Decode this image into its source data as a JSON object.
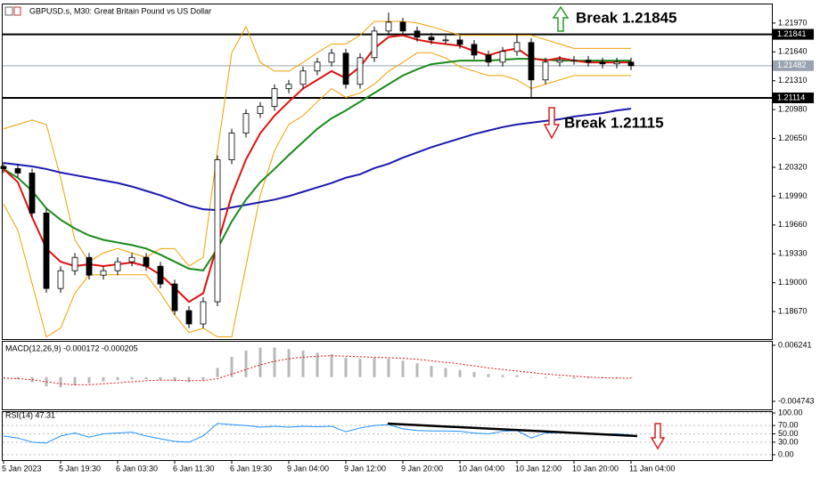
{
  "chart_data": [
    {
      "type": "candlestick",
      "title": "GBPUSD.s, M30:  Great Britain Pound vs US Dollar",
      "categories": [
        "5 Jan 2023",
        null,
        null,
        null,
        "5 Jan 19:30",
        null,
        null,
        null,
        "6 Jan 03:30",
        null,
        null,
        null,
        "6 Jan 11:30",
        null,
        null,
        null,
        "6 Jan 19:30",
        null,
        null,
        null,
        "9 Jan 04:00",
        null,
        null,
        null,
        "9 Jan 12:00",
        null,
        null,
        null,
        "9 Jan 20:00",
        null,
        null,
        null,
        "10 Jan 04:00",
        null,
        null,
        null,
        "10 Jan 12:00",
        null,
        null,
        null,
        "10 Jan 20:00",
        null,
        null,
        null,
        "11 Jan 04:00"
      ],
      "open": [
        1.2033,
        1.20305,
        1.20254,
        1.19797,
        1.18934,
        1.19137,
        1.19289,
        1.19086,
        1.19137,
        1.19239,
        1.19289,
        1.19188,
        1.18985,
        1.1868,
        1.18528,
        1.18782,
        1.20406,
        1.20711,
        1.20934,
        1.21016,
        1.21219,
        1.21269,
        1.21422,
        1.21523,
        1.21625,
        1.21269,
        1.21574,
        1.21879,
        1.2198,
        1.21879,
        1.21808,
        1.21777,
        1.21777,
        1.21726,
        1.21604,
        1.21523,
        1.21645,
        1.21747,
        1.2132,
        1.21523,
        1.21544,
        1.21544,
        1.21523,
        1.21503,
        1.21523
      ],
      "high": [
        1.2038,
        1.20355,
        1.20304,
        1.19847,
        1.19187,
        1.19339,
        1.19339,
        1.19187,
        1.19289,
        1.19339,
        1.19339,
        1.19238,
        1.19035,
        1.1873,
        1.18832,
        1.20456,
        1.20761,
        1.20984,
        1.21066,
        1.21269,
        1.21319,
        1.21472,
        1.21573,
        1.21675,
        1.21675,
        1.21624,
        1.21929,
        1.2209,
        1.2203,
        1.21929,
        1.21858,
        1.21827,
        1.21827,
        1.21776,
        1.21654,
        1.21695,
        1.2185,
        1.21797,
        1.21573,
        1.21594,
        1.21594,
        1.21594,
        1.21573,
        1.21573,
        1.21573
      ],
      "low": [
        1.20255,
        1.20204,
        1.19747,
        1.18884,
        1.18884,
        1.19087,
        1.19036,
        1.19036,
        1.19087,
        1.19189,
        1.19138,
        1.18935,
        1.1863,
        1.18478,
        1.18478,
        1.18732,
        1.20356,
        1.20661,
        1.20884,
        1.20966,
        1.21169,
        1.21219,
        1.21372,
        1.21473,
        1.21219,
        1.21219,
        1.21524,
        1.21829,
        1.21829,
        1.21758,
        1.21727,
        1.21727,
        1.21676,
        1.21554,
        1.21473,
        1.21473,
        1.21595,
        1.21114,
        1.2127,
        1.21473,
        1.21494,
        1.21473,
        1.21453,
        1.21453,
        1.21432
      ],
      "close": [
        1.20305,
        1.20254,
        1.19797,
        1.18934,
        1.19137,
        1.19289,
        1.19086,
        1.19137,
        1.19239,
        1.19289,
        1.19188,
        1.18985,
        1.1868,
        1.18528,
        1.18782,
        1.20406,
        1.20711,
        1.20934,
        1.21016,
        1.21219,
        1.21269,
        1.21422,
        1.21523,
        1.21625,
        1.21269,
        1.21574,
        1.21879,
        1.2198,
        1.21879,
        1.21808,
        1.21777,
        1.21777,
        1.21726,
        1.21604,
        1.21523,
        1.21645,
        1.21747,
        1.2132,
        1.21523,
        1.21544,
        1.21544,
        1.21523,
        1.21503,
        1.21523,
        1.21482
      ],
      "lines": [
        {
          "color": "#f0a000",
          "values": [
            1.2076,
            1.2081,
            1.2086,
            1.2081,
            1.202,
            1.1949,
            1.1924,
            1.1934,
            1.1939,
            1.1934,
            1.1929,
            1.1939,
            1.1939,
            1.1919,
            1.1929,
            1.2051,
            1.2163,
            1.2193,
            1.2152,
            1.2142,
            1.2142,
            1.2152,
            1.2163,
            1.2173,
            1.2173,
            1.2183,
            1.2199,
            1.2199,
            1.2199,
            1.2197,
            1.2193,
            1.2188,
            1.2183,
            1.2183,
            1.2183,
            1.2183,
            1.2183,
            1.2183,
            1.2178,
            1.2173,
            1.2168,
            1.2168,
            1.2168,
            1.2168,
            1.2168
          ]
        },
        {
          "color": "#f0a000",
          "values": [
            1.199,
            1.196,
            1.1899,
            1.1838,
            1.1848,
            1.1888,
            1.1909,
            1.1909,
            1.1909,
            1.1909,
            1.1909,
            1.1888,
            1.1863,
            1.1843,
            1.1848,
            1.1838,
            1.1838,
            1.1919,
            1.2,
            1.2051,
            1.2081,
            1.2091,
            1.2107,
            1.2122,
            1.2112,
            1.2117,
            1.2127,
            1.2142,
            1.2152,
            1.2163,
            1.2163,
            1.2157,
            1.2147,
            1.2142,
            1.2137,
            1.2137,
            1.2132,
            1.2122,
            1.2127,
            1.2132,
            1.2137,
            1.2137,
            1.2137,
            1.2137,
            1.2137
          ]
        },
        {
          "color": "#1a1ab0",
          "values": [
            1.2037,
            1.2035,
            1.2033,
            1.203,
            1.2026,
            1.2023,
            1.202,
            1.2017,
            1.2014,
            1.201,
            1.2005,
            1.2,
            1.1994,
            1.1988,
            1.1984,
            1.1983,
            1.1986,
            1.1989,
            1.1992,
            1.1995,
            1.1999,
            1.2004,
            1.2009,
            1.2014,
            1.202,
            1.2024,
            1.2031,
            1.2036,
            1.2043,
            1.2049,
            1.2055,
            1.206,
            1.2065,
            1.207,
            1.2074,
            1.2078,
            1.2081,
            1.2083,
            1.2085,
            1.2087,
            1.209,
            1.2092,
            1.2094,
            1.2097,
            1.2099
          ]
        },
        {
          "color": "#1a8a1a",
          "values": [
            1.203,
            1.202,
            1.2005,
            1.1985,
            1.1972,
            1.1962,
            1.1954,
            1.1949,
            1.1946,
            1.1943,
            1.1939,
            1.1932,
            1.1924,
            1.1916,
            1.1914,
            1.1939,
            1.197,
            1.1995,
            1.2015,
            1.203,
            1.2046,
            1.2061,
            1.2076,
            1.2088,
            1.2097,
            1.2107,
            1.2117,
            1.2127,
            1.2137,
            1.2144,
            1.215,
            1.2152,
            1.2154,
            1.2154,
            1.2154,
            1.2155,
            1.2156,
            1.2156,
            1.2155,
            1.2154,
            1.2154,
            1.2154,
            1.2154,
            1.2154,
            1.2154
          ]
        },
        {
          "color": "#e01010",
          "values": [
            1.203,
            1.2015,
            1.1975,
            1.1939,
            1.1924,
            1.1919,
            1.1921,
            1.1919,
            1.1921,
            1.1923,
            1.1919,
            1.1909,
            1.1894,
            1.1878,
            1.1888,
            1.1944,
            1.2,
            1.2041,
            1.2071,
            1.2091,
            1.2107,
            1.2122,
            1.2132,
            1.2142,
            1.2134,
            1.2147,
            1.2168,
            1.2181,
            1.2183,
            1.2178,
            1.2175,
            1.2173,
            1.2171,
            1.2165,
            1.216,
            1.2165,
            1.2168,
            1.2157,
            1.2154,
            1.2157,
            1.2154,
            1.2152,
            1.2152,
            1.2152,
            1.2152
          ]
        }
      ],
      "ylim": [
        1.18355,
        1.22193
      ],
      "yticks": [
        {
          "value": 1.2197,
          "label": "1.21970"
        },
        {
          "value": 1.2164,
          "label": "1.21640"
        },
        {
          "value": 1.2131,
          "label": "1.21310"
        },
        {
          "value": 1.2098,
          "label": "1.20980"
        },
        {
          "value": 1.2065,
          "label": "1.20650"
        },
        {
          "value": 1.2032,
          "label": "1.20320"
        },
        {
          "value": 1.1999,
          "label": "1.19990"
        },
        {
          "value": 1.1966,
          "label": "1.19660"
        },
        {
          "value": 1.1933,
          "label": "1.19330"
        },
        {
          "value": 1.19,
          "label": "1.19000"
        },
        {
          "value": 1.1867,
          "label": "1.18670"
        }
      ],
      "levels": [
        {
          "value": 1.21841,
          "label": "1.21841"
        },
        {
          "value": 1.21114,
          "label": "1.21114"
        }
      ],
      "current_price": {
        "value": 1.21482,
        "label": "1.21482"
      },
      "annotations": [
        "Break 1.21845",
        "Break 1.21115"
      ]
    },
    {
      "type": "macd",
      "title": "MACD(12,26,9) -0.000172 -0.000205",
      "histogram": [
        -0.0002,
        -0.0004,
        -0.001,
        -0.0018,
        -0.002,
        -0.0016,
        -0.0012,
        -0.0008,
        -0.0006,
        -0.0004,
        -0.0004,
        -0.0006,
        -0.0008,
        -0.001,
        -0.0006,
        0.0018,
        0.004,
        0.0052,
        0.0058,
        0.0058,
        0.0055,
        0.0052,
        0.0048,
        0.0045,
        0.0038,
        0.0036,
        0.0038,
        0.0036,
        0.0032,
        0.0027,
        0.0022,
        0.0018,
        0.0014,
        0.001,
        0.0006,
        0.0004,
        0.0004,
        0.0,
        -0.0002,
        -0.0002,
        -0.0003,
        -0.0002,
        -0.0002,
        -0.0002,
        -0.000172
      ],
      "signal": [
        -0.0002,
        -0.0003,
        -0.0005,
        -0.0009,
        -0.0013,
        -0.0015,
        -0.0015,
        -0.0013,
        -0.0011,
        -0.0009,
        -0.0007,
        -0.0006,
        -0.0006,
        -0.0007,
        -0.0007,
        -0.0003,
        0.0006,
        0.0015,
        0.0024,
        0.0031,
        0.0036,
        0.0039,
        0.0041,
        0.0042,
        0.0041,
        0.004,
        0.0039,
        0.0038,
        0.0037,
        0.0035,
        0.0032,
        0.0029,
        0.0026,
        0.0022,
        0.0018,
        0.0015,
        0.0012,
        0.0009,
        0.0006,
        0.0004,
        0.0002,
        0.0,
        -0.0001,
        -0.0002,
        -0.000205
      ],
      "histogram_color": "#b8b8b8",
      "signal_color": "#e01010",
      "ylim": [
        -0.00649,
        0.00711
      ],
      "yticks": [
        0.006241,
        -0.004743
      ]
    },
    {
      "type": "line",
      "title": "RSI(14) 47.31",
      "color": "#1e90ff",
      "values": [
        45,
        40,
        30,
        28,
        45,
        52,
        42,
        50,
        52,
        54,
        45,
        38,
        32,
        30,
        45,
        75,
        72,
        70,
        66,
        68,
        66,
        68,
        67,
        68,
        55,
        64,
        70,
        72,
        62,
        58,
        57,
        57,
        56,
        52,
        50,
        56,
        58,
        40,
        52,
        53,
        52,
        50,
        49,
        50,
        47.31
      ],
      "ylim": [
        -12.8,
        104.3
      ],
      "yticks": [
        {
          "value": 100,
          "label": "100.00"
        },
        {
          "value": 70,
          "label": "70.00"
        },
        {
          "value": 50,
          "label": "50.00"
        },
        {
          "value": 30,
          "label": "30.00"
        },
        {
          "value": 0,
          "label": "0.00"
        }
      ]
    }
  ]
}
